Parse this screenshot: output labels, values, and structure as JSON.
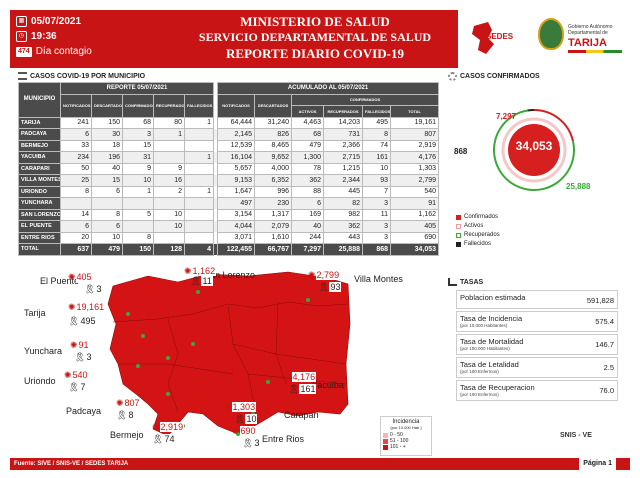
{
  "header": {
    "date": "05/07/2021",
    "time": "19:36",
    "day_number": "474",
    "day_label": "Día contagio",
    "title_line1": "MINISTERIO DE SALUD",
    "title_line2": "SERVICIO DEPARTAMENTAL DE SALUD",
    "title_line3": "REPORTE DIARIO COVID-19",
    "logo_sedes": "SEDES",
    "logo_gob": "Gobierno Autónomo Departamental de",
    "logo_tarija": "TARIJA"
  },
  "sections": {
    "casos_municipio": "CASOS COVID-19 POR MUNICIPIO",
    "casos_confirmados": "CASOS CONFIRMADOS",
    "tasas": "TASAS"
  },
  "table": {
    "col_municipio": "MUNICIPIO",
    "group_report": "REPORTE 05/07/2021",
    "group_acum": "ACUMULADO AL 05/07/2021",
    "group_confirmados": "CONFIRMADOS",
    "report_cols": [
      "NOTIFICADOS",
      "DESCARTADOS",
      "CONFIRMADOS",
      "RECUPERADOS",
      "FALLECIDOS"
    ],
    "acum_cols": [
      "NOTIFICADOS",
      "DESCARTADOS"
    ],
    "conf_cols": [
      "ACTIVOS",
      "RECUPERADOS",
      "FALLECIDOS",
      "TOTAL"
    ],
    "rows": [
      {
        "name": "TARIJA",
        "r": [
          "241",
          "150",
          "68",
          "80",
          "1"
        ],
        "a": [
          "64,444",
          "31,240",
          "4,463",
          "14,203",
          "495",
          "19,161"
        ]
      },
      {
        "name": "PADCAYA",
        "r": [
          "6",
          "30",
          "3",
          "1",
          ""
        ],
        "a": [
          "2,145",
          "826",
          "68",
          "731",
          "8",
          "807"
        ]
      },
      {
        "name": "BERMEJO",
        "r": [
          "33",
          "18",
          "15",
          "",
          ""
        ],
        "a": [
          "12,539",
          "8,465",
          "479",
          "2,366",
          "74",
          "2,919"
        ]
      },
      {
        "name": "YACUIBA",
        "r": [
          "234",
          "196",
          "31",
          "",
          "1"
        ],
        "a": [
          "16,104",
          "9,652",
          "1,300",
          "2,715",
          "161",
          "4,176"
        ]
      },
      {
        "name": "CARAPARI",
        "r": [
          "50",
          "40",
          "9",
          "9",
          ""
        ],
        "a": [
          "5,657",
          "4,000",
          "78",
          "1,215",
          "10",
          "1,303"
        ]
      },
      {
        "name": "VILLA MONTES",
        "r": [
          "25",
          "15",
          "10",
          "16",
          ""
        ],
        "a": [
          "9,153",
          "6,352",
          "362",
          "2,344",
          "93",
          "2,799"
        ]
      },
      {
        "name": "URIONDO",
        "r": [
          "8",
          "6",
          "1",
          "2",
          "1"
        ],
        "a": [
          "1,647",
          "996",
          "88",
          "445",
          "7",
          "540"
        ]
      },
      {
        "name": "YUNCHARA",
        "r": [
          "",
          "",
          "",
          "",
          ""
        ],
        "a": [
          "497",
          "230",
          "6",
          "82",
          "3",
          "91"
        ]
      },
      {
        "name": "SAN LORENZO",
        "r": [
          "14",
          "8",
          "5",
          "10",
          ""
        ],
        "a": [
          "3,154",
          "1,317",
          "169",
          "982",
          "11",
          "1,162"
        ]
      },
      {
        "name": "EL PUENTE",
        "r": [
          "6",
          "6",
          "",
          "10",
          ""
        ],
        "a": [
          "4,044",
          "2,079",
          "40",
          "362",
          "3",
          "405"
        ]
      },
      {
        "name": "ENTRE RIOS",
        "r": [
          "20",
          "10",
          "8",
          "",
          ""
        ],
        "a": [
          "3,071",
          "1,610",
          "244",
          "443",
          "3",
          "690"
        ]
      }
    ],
    "total": {
      "name": "TOTAL",
      "r": [
        "637",
        "479",
        "150",
        "128",
        "4"
      ],
      "a": [
        "122,455",
        "66,767",
        "7,297",
        "25,888",
        "868",
        "34,053"
      ]
    }
  },
  "confirmed": {
    "total": "34,053",
    "activos": "7,297",
    "recuperados": "25,888",
    "fallecidos": "868",
    "legend": [
      "Confirmados",
      "Activos",
      "Recuperados",
      "Fallecidos"
    ],
    "colors": {
      "confirmados": "#d62020",
      "activos": "#e8a0a0",
      "recuperados": "#3aa83a",
      "fallecidos": "#222222"
    }
  },
  "rates": [
    {
      "name": "Poblacion estimada",
      "sub": "",
      "value": "591,828"
    },
    {
      "name": "Tasa de Incidencia",
      "sub": "(por 10.000 Habitantes)",
      "value": "575.4"
    },
    {
      "name": "Tasa de Mortalidad",
      "sub": "(por 100.000 Habitantes)",
      "value": "146.7"
    },
    {
      "name": "Tasa de Letalidad",
      "sub": "(por 100 Enfermos)",
      "value": "2.5"
    },
    {
      "name": "Tasa de Recuperacion",
      "sub": "(por 100 Enfermos)",
      "value": "76.0"
    }
  ],
  "map": {
    "el_puente": {
      "label": "El Puente",
      "cases": "405",
      "deaths": "3"
    },
    "san_lorenzo": {
      "label": "San Lorenzo",
      "cases": "1,162",
      "deaths": "11"
    },
    "villa_montes": {
      "label": "Villa Montes",
      "cases": "2,799",
      "deaths": "93"
    },
    "tarija": {
      "label": "Tarija",
      "cases": "19,161",
      "deaths": "495"
    },
    "yunchara": {
      "label": "Yunchara",
      "cases": "91",
      "deaths": "3"
    },
    "uriondo": {
      "label": "Uriondo",
      "cases": "540",
      "deaths": "7"
    },
    "yacuiba": {
      "label": "Yacuiba",
      "cases": "4,176",
      "deaths": "161"
    },
    "padcaya": {
      "label": "Padcaya",
      "cases": "807",
      "deaths": "8"
    },
    "carapari": {
      "label": "Carapari",
      "cases": "1,303",
      "deaths": "10"
    },
    "bermejo": {
      "label": "Bermejo",
      "cases": "2,919",
      "deaths": "74"
    },
    "entre_rios": {
      "label": "Entre Rios",
      "cases": "690",
      "deaths": "3"
    }
  },
  "incidence": {
    "title": "Incidencia",
    "sub": "(por 10.000 Hab.)",
    "ranges": [
      "0 - 50",
      "51 - 100",
      "101 - +"
    ],
    "colors": [
      "#f5b5b5",
      "#e44848",
      "#c81414"
    ]
  },
  "footer": {
    "source": "Fuente: SIVE / SNIS-VE / SEDES TARIJA",
    "page": "Página 1",
    "snis": "SNIS - VE"
  }
}
